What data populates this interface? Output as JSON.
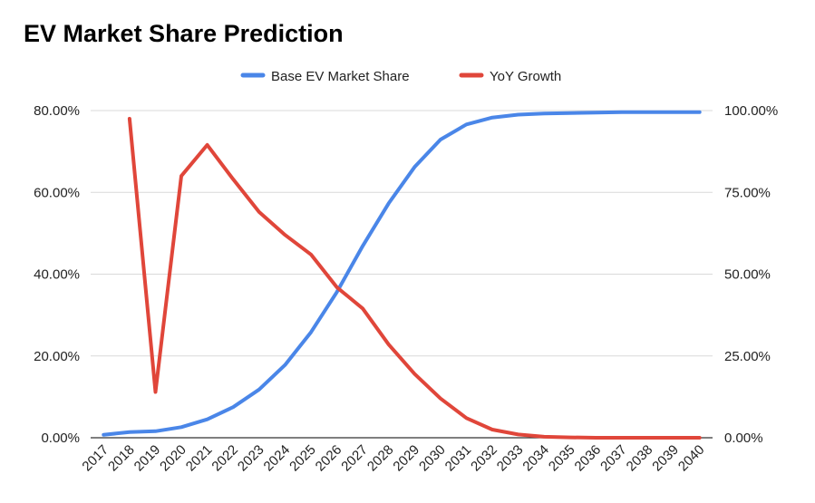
{
  "chart_data": {
    "type": "line",
    "title": "EV Market Share Prediction",
    "categories": [
      "2017",
      "2018",
      "2019",
      "2020",
      "2021",
      "2022",
      "2023",
      "2024",
      "2025",
      "2026",
      "2027",
      "2028",
      "2029",
      "2030",
      "2031",
      "2032",
      "2033",
      "2034",
      "2035",
      "2036",
      "2037",
      "2038",
      "2039",
      "2040"
    ],
    "series": [
      {
        "name": "Base EV Market Share",
        "axis": "left",
        "color": "#4a86e8",
        "values": [
          0.007,
          0.014,
          0.016,
          0.026,
          0.045,
          0.075,
          0.118,
          0.178,
          0.258,
          0.356,
          0.469,
          0.573,
          0.662,
          0.729,
          0.766,
          0.783,
          0.79,
          0.793,
          0.794,
          0.795,
          0.796,
          0.796,
          0.796,
          0.796
        ]
      },
      {
        "name": "YoY Growth",
        "axis": "right",
        "color": "#e0463a",
        "values": [
          null,
          0.975,
          0.14,
          0.8,
          0.895,
          0.79,
          0.69,
          0.62,
          0.56,
          0.46,
          0.395,
          0.285,
          0.195,
          0.12,
          0.06,
          0.025,
          0.01,
          0.003,
          0.001,
          0.0,
          0.0,
          0.0,
          0.0,
          0.0
        ]
      }
    ],
    "y_left": {
      "ylim": [
        0,
        0.8
      ],
      "ticks": [
        "0.00%",
        "20.00%",
        "40.00%",
        "60.00%",
        "80.00%"
      ]
    },
    "y_right": {
      "ylim": [
        0,
        1.0
      ],
      "ticks": [
        "0.00%",
        "25.00%",
        "50.00%",
        "75.00%",
        "100.00%"
      ]
    },
    "grid": true,
    "legend_position": "top-center"
  }
}
